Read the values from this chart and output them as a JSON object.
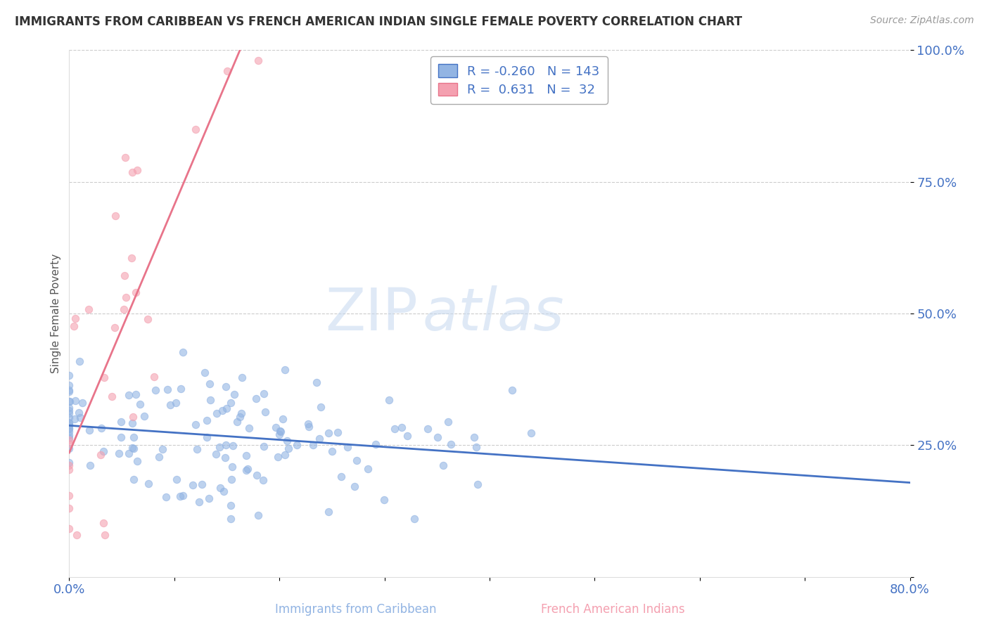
{
  "title": "IMMIGRANTS FROM CARIBBEAN VS FRENCH AMERICAN INDIAN SINGLE FEMALE POVERTY CORRELATION CHART",
  "source": "Source: ZipAtlas.com",
  "xlabel_blue": "Immigrants from Caribbean",
  "xlabel_pink": "French American Indians",
  "ylabel": "Single Female Poverty",
  "xmin": 0.0,
  "xmax": 0.8,
  "ymin": 0.0,
  "ymax": 1.0,
  "yticks": [
    0.0,
    0.25,
    0.5,
    0.75,
    1.0
  ],
  "ytick_labels": [
    "",
    "25.0%",
    "50.0%",
    "75.0%",
    "100.0%"
  ],
  "blue_R": -0.26,
  "blue_N": 143,
  "pink_R": 0.631,
  "pink_N": 32,
  "blue_color": "#92B4E3",
  "pink_color": "#F4A0B0",
  "blue_line_color": "#4472C4",
  "pink_line_color": "#E8748A",
  "watermark_zip": "ZIP",
  "watermark_atlas": "atlas",
  "background_color": "#FFFFFF",
  "grid_color": "#CCCCCC",
  "legend_R_color": "#4472C4",
  "title_color": "#333333",
  "source_color": "#999999",
  "ylabel_color": "#555555"
}
